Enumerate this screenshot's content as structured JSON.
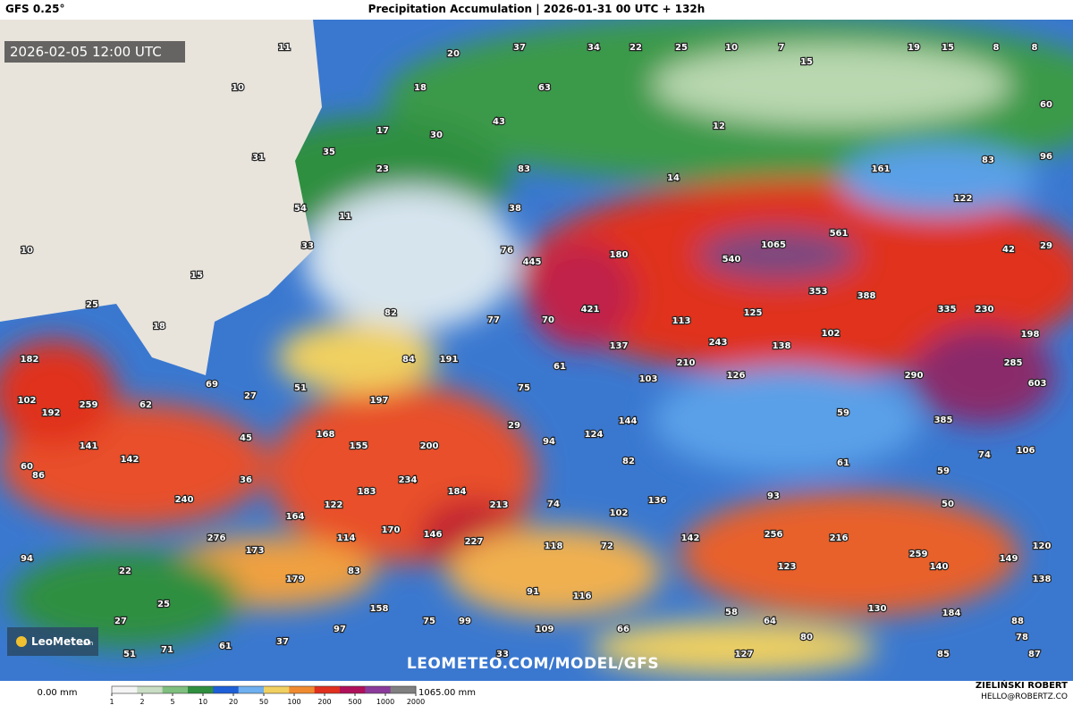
{
  "header": {
    "model": "GFS 0.25°",
    "title": "Precipitation Accumulation | 2026-01-31 00 UTC + 132h"
  },
  "valid_time": "2026-02-05 12:00 UTC",
  "watermark": "LEOMETEO.COM/MODEL/GFS",
  "logo": {
    "name": "LeoMeteo",
    "suffix": ".com"
  },
  "map_labels": [
    11,
    20,
    37,
    34,
    22,
    25,
    10,
    7,
    15,
    19,
    15,
    8,
    8,
    10,
    18,
    63,
    60,
    43,
    17,
    30,
    12,
    31,
    35,
    23,
    83,
    161,
    83,
    96,
    14,
    54,
    11,
    38,
    122,
    10,
    33,
    76,
    1065,
    561,
    42,
    29,
    180,
    540,
    445,
    15,
    353,
    388,
    421,
    25,
    82,
    77,
    70,
    113,
    125,
    335,
    230,
    18,
    137,
    243,
    138,
    102,
    198,
    182,
    84,
    191,
    61,
    210,
    285,
    69,
    51,
    75,
    103,
    126,
    290,
    603,
    27,
    102,
    192,
    259,
    62,
    197,
    59,
    29,
    144,
    385,
    168,
    155,
    45,
    94,
    124,
    200,
    141,
    106,
    142,
    82,
    61,
    74,
    60,
    86,
    36,
    234,
    59,
    184,
    183,
    240,
    136,
    93,
    213,
    74,
    50,
    164,
    122,
    102,
    170,
    114,
    146,
    276,
    256,
    216,
    142,
    227,
    118,
    72,
    173,
    120,
    259,
    149,
    94,
    83,
    22,
    123,
    140,
    179,
    138,
    91,
    116,
    25,
    130,
    158,
    75,
    99,
    58,
    184,
    27,
    64,
    88,
    97,
    109,
    66,
    80,
    78,
    61,
    37,
    51,
    71,
    33,
    127,
    85,
    87
  ],
  "colorbar": {
    "min_label": "0.00 mm",
    "max_label": "1065.00 mm",
    "ticks": [
      1,
      2,
      5,
      10,
      20,
      50,
      100,
      200,
      500,
      1000,
      2000
    ],
    "colors": [
      "#f4f4f4",
      "#c9dcc4",
      "#7fbf7f",
      "#2f8f3f",
      "#1e5fd8",
      "#6fb0f0",
      "#f0d060",
      "#f08a30",
      "#e0301e",
      "#b0105a",
      "#8a3a9a",
      "#808080"
    ]
  },
  "footer": {
    "author": "ZIELIŃSKI ROBERT",
    "email": "HELLO@ROBERTZ.CO"
  }
}
